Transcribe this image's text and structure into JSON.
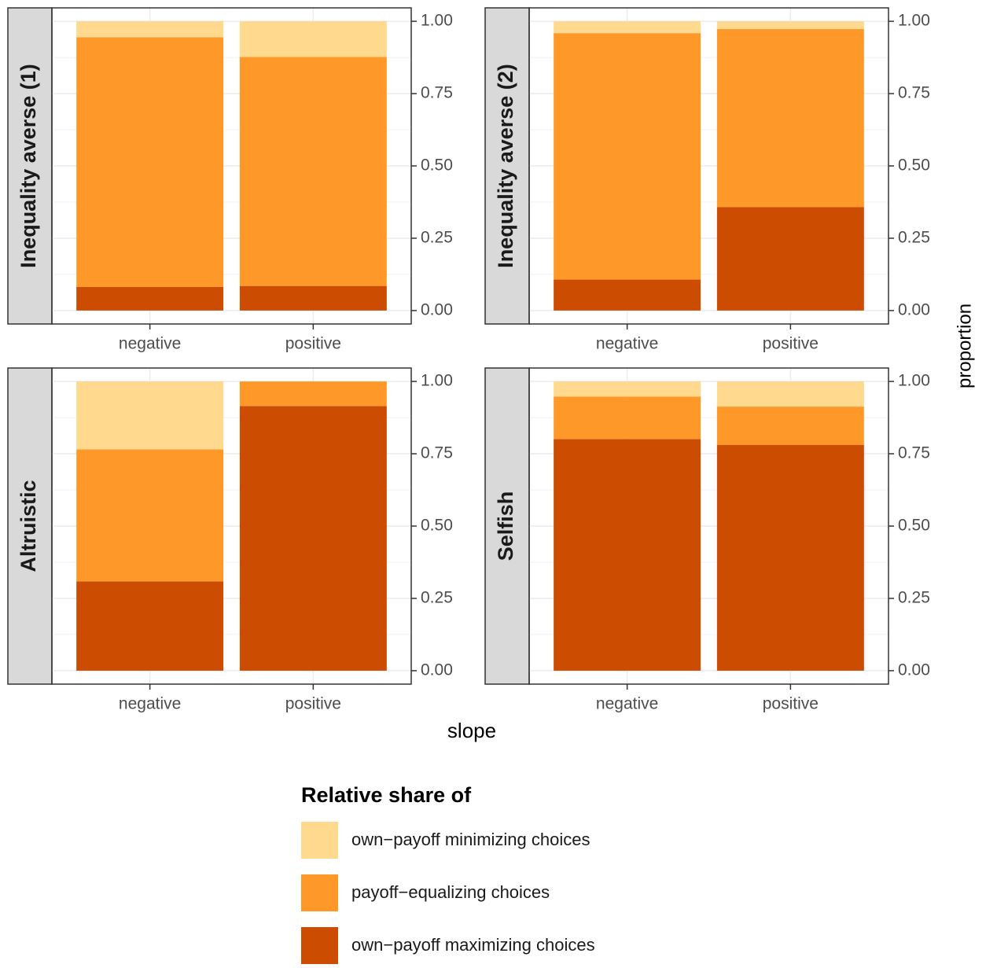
{
  "chart_data": {
    "type": "bar",
    "stacked": true,
    "xlabel": "slope",
    "ylabel": "proportion",
    "legend_title": "Relative share of",
    "categories": [
      "negative",
      "positive"
    ],
    "series": [
      {
        "name": "own−payoff minimizing choices",
        "color": "#fed98e"
      },
      {
        "name": "payoff−equalizing choices",
        "color": "#fe9929"
      },
      {
        "name": "own−payoff maximizing choices",
        "color": "#cc4c02"
      }
    ],
    "ylim": [
      0,
      1
    ],
    "yticks": [
      {
        "value": 0,
        "label": "0.00"
      },
      {
        "value": 0.25,
        "label": "0.25"
      },
      {
        "value": 0.5,
        "label": "0.50"
      },
      {
        "value": 0.75,
        "label": "0.75"
      },
      {
        "value": 1,
        "label": "1.00"
      }
    ],
    "grid": true,
    "facets": [
      {
        "title": "Inequality averse (1)",
        "values": [
          [
            0.055,
            0.123
          ],
          [
            0.863,
            0.792
          ],
          [
            0.082,
            0.085
          ]
        ]
      },
      {
        "title": "Inequality averse (2)",
        "values": [
          [
            0.041,
            0.027
          ],
          [
            0.852,
            0.615
          ],
          [
            0.107,
            0.358
          ]
        ]
      },
      {
        "title": "Altruistic",
        "values": [
          [
            0.235,
            0
          ],
          [
            0.456,
            0.085
          ],
          [
            0.309,
            0.915
          ]
        ]
      },
      {
        "title": "Selfish",
        "values": [
          [
            0.052,
            0.087
          ],
          [
            0.147,
            0.132
          ],
          [
            0.801,
            0.781
          ]
        ]
      }
    ]
  }
}
